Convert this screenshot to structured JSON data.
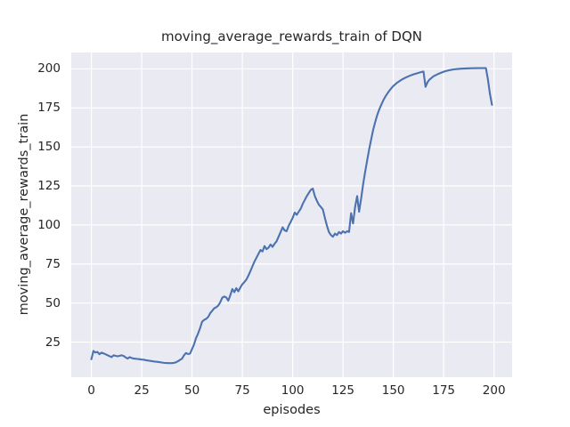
{
  "chart_data": {
    "type": "line",
    "title": "moving_average_rewards_train of DQN",
    "xlabel": "episodes",
    "ylabel": "moving_average_rewards_train",
    "xlim": [
      -10,
      209
    ],
    "ylim": [
      2.5,
      210.5
    ],
    "x_ticks": [
      0,
      25,
      50,
      75,
      100,
      125,
      150,
      175,
      200
    ],
    "y_ticks": [
      25,
      50,
      75,
      100,
      125,
      150,
      175,
      200
    ],
    "grid": true,
    "legend": false,
    "plot_bg_color": "#eaeaf2",
    "grid_color": "#ffffff",
    "text_color": "#262626",
    "series": [
      {
        "name": "moving_average_rewards_train",
        "color": "#4c72b0",
        "points": [
          [
            0,
            14
          ],
          [
            1,
            19.3
          ],
          [
            2,
            18.3
          ],
          [
            3,
            18.7
          ],
          [
            4,
            17.2
          ],
          [
            5,
            18.2
          ],
          [
            6,
            17.8
          ],
          [
            7,
            17.2
          ],
          [
            8,
            16.6
          ],
          [
            9,
            16
          ],
          [
            10,
            15.4
          ],
          [
            11,
            16.5
          ],
          [
            12,
            16.2
          ],
          [
            13,
            15.9
          ],
          [
            14,
            16.2
          ],
          [
            15,
            16.5
          ],
          [
            16,
            16.1
          ],
          [
            17,
            15.2
          ],
          [
            18,
            14.4
          ],
          [
            19,
            15.3
          ],
          [
            20,
            14.8
          ],
          [
            21,
            14.4
          ],
          [
            22,
            14.3
          ],
          [
            23,
            14.2
          ],
          [
            24,
            14
          ],
          [
            25,
            13.8
          ],
          [
            26,
            13.7
          ],
          [
            27,
            13.4
          ],
          [
            28,
            13.2
          ],
          [
            29,
            13
          ],
          [
            30,
            12.8
          ],
          [
            31,
            12.6
          ],
          [
            32,
            12.4
          ],
          [
            33,
            12.3
          ],
          [
            34,
            12.1
          ],
          [
            35,
            11.9
          ],
          [
            36,
            11.7
          ],
          [
            37,
            11.6
          ],
          [
            38,
            11.5
          ],
          [
            39,
            11.5
          ],
          [
            40,
            11.5
          ],
          [
            41,
            11.7
          ],
          [
            42,
            12
          ],
          [
            43,
            12.7
          ],
          [
            44,
            13.6
          ],
          [
            45,
            14.3
          ],
          [
            46,
            16.5
          ],
          [
            47,
            18
          ],
          [
            48,
            17.3
          ],
          [
            49,
            17.6
          ],
          [
            50,
            20.5
          ],
          [
            51,
            23.5
          ],
          [
            52,
            27.5
          ],
          [
            53,
            30.5
          ],
          [
            54,
            34
          ],
          [
            55,
            38
          ],
          [
            56,
            39.2
          ],
          [
            57,
            39.8
          ],
          [
            58,
            41
          ],
          [
            59,
            43.5
          ],
          [
            60,
            45
          ],
          [
            61,
            46.6
          ],
          [
            62,
            47.3
          ],
          [
            63,
            48.3
          ],
          [
            64,
            50.5
          ],
          [
            65,
            53.4
          ],
          [
            66,
            54.2
          ],
          [
            67,
            53.6
          ],
          [
            68,
            51.5
          ],
          [
            69,
            55
          ],
          [
            70,
            59
          ],
          [
            71,
            57
          ],
          [
            72,
            59.5
          ],
          [
            73,
            57.5
          ],
          [
            74,
            60
          ],
          [
            75,
            62
          ],
          [
            76,
            63.5
          ],
          [
            77,
            65
          ],
          [
            78,
            67.5
          ],
          [
            79,
            70.5
          ],
          [
            80,
            73.5
          ],
          [
            81,
            76.5
          ],
          [
            82,
            79
          ],
          [
            83,
            81.5
          ],
          [
            84,
            84
          ],
          [
            85,
            83
          ],
          [
            86,
            86.5
          ],
          [
            87,
            84.5
          ],
          [
            88,
            85.5
          ],
          [
            89,
            87.5
          ],
          [
            90,
            86
          ],
          [
            91,
            88
          ],
          [
            92,
            89.5
          ],
          [
            93,
            92.5
          ],
          [
            94,
            95.5
          ],
          [
            95,
            98.5
          ],
          [
            96,
            96.5
          ],
          [
            97,
            96
          ],
          [
            98,
            99.5
          ],
          [
            99,
            102
          ],
          [
            100,
            104.5
          ],
          [
            101,
            108
          ],
          [
            102,
            106.5
          ],
          [
            103,
            108.5
          ],
          [
            104,
            110.5
          ],
          [
            105,
            113.5
          ],
          [
            106,
            116
          ],
          [
            107,
            118.5
          ],
          [
            108,
            120.5
          ],
          [
            109,
            122.5
          ],
          [
            110,
            123.3
          ],
          [
            111,
            118.5
          ],
          [
            112,
            115.5
          ],
          [
            113,
            113
          ],
          [
            114,
            111.5
          ],
          [
            115,
            110
          ],
          [
            116,
            104.5
          ],
          [
            117,
            99.5
          ],
          [
            118,
            95.5
          ],
          [
            119,
            93.5
          ],
          [
            120,
            92.5
          ],
          [
            121,
            94.5
          ],
          [
            122,
            93.5
          ],
          [
            123,
            95.5
          ],
          [
            124,
            94.5
          ],
          [
            125,
            96
          ],
          [
            126,
            95
          ],
          [
            127,
            96
          ],
          [
            128,
            95.5
          ],
          [
            129,
            107.5
          ],
          [
            130,
            101
          ],
          [
            131,
            111.5
          ],
          [
            132,
            118.5
          ],
          [
            133,
            108.5
          ],
          [
            134,
            117
          ],
          [
            135,
            126
          ],
          [
            136,
            134
          ],
          [
            137,
            141.5
          ],
          [
            138,
            148.5
          ],
          [
            139,
            155
          ],
          [
            140,
            161
          ],
          [
            141,
            166
          ],
          [
            142,
            170.5
          ],
          [
            143,
            174
          ],
          [
            144,
            177
          ],
          [
            145,
            179.8
          ],
          [
            146,
            182.2
          ],
          [
            147,
            184.2
          ],
          [
            148,
            186
          ],
          [
            149,
            187.6
          ],
          [
            150,
            189
          ],
          [
            152,
            191.3
          ],
          [
            154,
            193
          ],
          [
            156,
            194.4
          ],
          [
            158,
            195.5
          ],
          [
            160,
            196.5
          ],
          [
            162,
            197.3
          ],
          [
            164,
            198
          ],
          [
            165,
            198.3
          ],
          [
            166,
            188.5
          ],
          [
            167,
            191.5
          ],
          [
            168,
            193.2
          ],
          [
            170,
            195.3
          ],
          [
            172,
            196.6
          ],
          [
            174,
            197.7
          ],
          [
            176,
            198.6
          ],
          [
            178,
            199.2
          ],
          [
            180,
            199.7
          ],
          [
            183,
            200.1
          ],
          [
            186,
            200.3
          ],
          [
            189,
            200.4
          ],
          [
            192,
            200.45
          ],
          [
            194,
            200.45
          ],
          [
            196,
            200.45
          ],
          [
            197,
            193
          ],
          [
            198,
            184
          ],
          [
            199,
            177
          ]
        ]
      }
    ]
  }
}
